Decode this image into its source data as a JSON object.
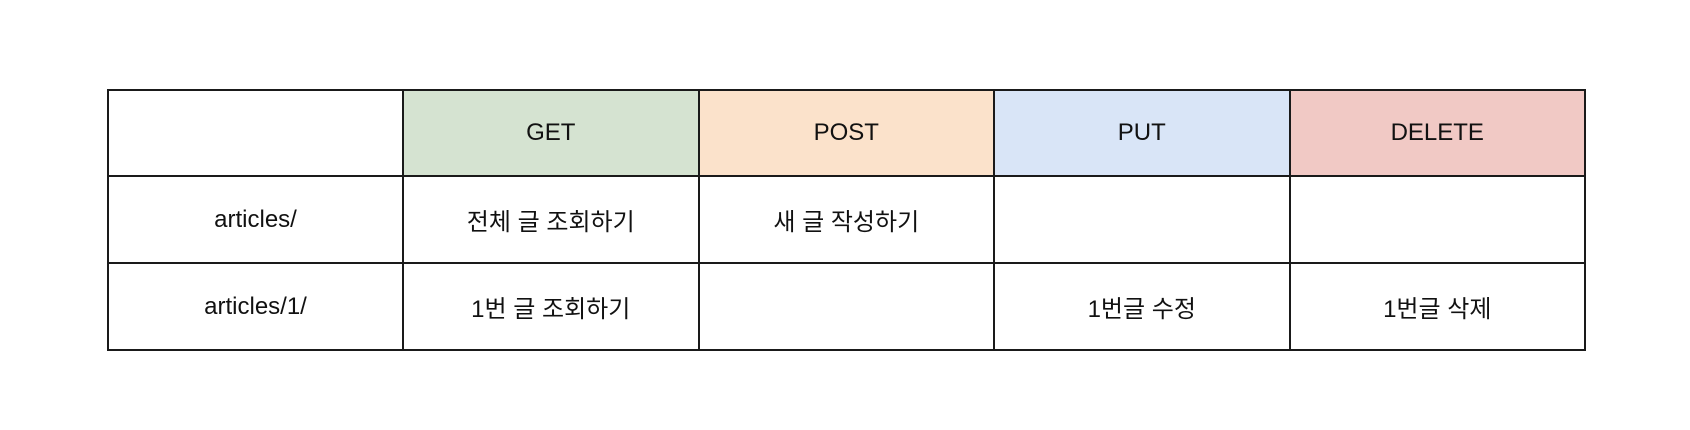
{
  "table": {
    "methods": [
      {
        "label": "GET",
        "color": "#d5e3d1"
      },
      {
        "label": "POST",
        "color": "#fbe2cb"
      },
      {
        "label": "PUT",
        "color": "#d9e5f7"
      },
      {
        "label": "DELETE",
        "color": "#f1c9c5"
      }
    ],
    "rows": [
      {
        "path": "articles/",
        "cells": [
          "전체 글 조회하기",
          "새 글 작성하기",
          "",
          ""
        ]
      },
      {
        "path": "articles/1/",
        "cells": [
          "1번 글 조회하기",
          "",
          "1번글 수정",
          "1번글 삭제"
        ]
      }
    ]
  }
}
